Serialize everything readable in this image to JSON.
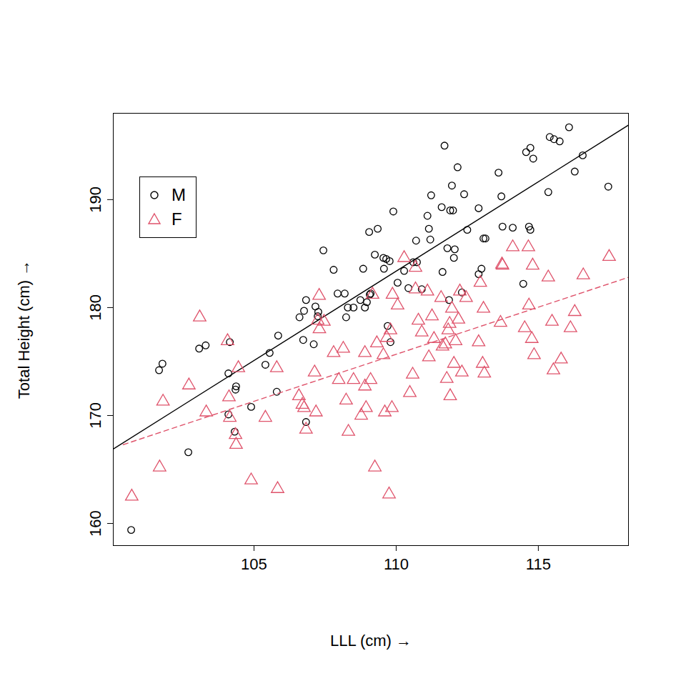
{
  "chart_data": {
    "type": "scatter",
    "x_label": "LLL (cm)",
    "y_label": "Total Height (cm)",
    "xlim": [
      100.05,
      118.17
    ],
    "ylim": [
      157.95,
      198.0
    ],
    "xticks": [
      105,
      110,
      115
    ],
    "yticks": [
      160,
      170,
      180,
      190
    ],
    "legend": "topleft",
    "grid": false,
    "series": [
      {
        "name": "M",
        "color": "#000000",
        "marker": "circle",
        "line_style": "solid",
        "x": [
          100.68,
          101.66,
          101.78,
          102.69,
          103.07,
          103.3,
          104.1,
          104.1,
          104.15,
          104.37,
          104.35,
          104.32,
          104.9,
          105.4,
          105.55,
          105.8,
          105.85,
          106.6,
          106.73,
          106.76,
          106.83,
          106.83,
          107.1,
          107.16,
          107.24,
          107.26,
          107.44,
          107.8,
          107.94,
          108.19,
          108.24,
          108.3,
          108.5,
          108.74,
          108.84,
          108.9,
          108.97,
          109.07,
          109.1,
          109.05,
          109.25,
          109.35,
          109.55,
          109.57,
          109.65,
          109.77,
          109.7,
          109.8,
          109.9,
          110.05,
          110.28,
          110.43,
          110.6,
          110.73,
          110.7,
          110.9,
          111.1,
          111.23,
          111.15,
          111.2,
          111.6,
          111.63,
          111.7,
          111.8,
          111.9,
          111.96,
          111.86,
          112.0,
          112.03,
          112.06,
          112.16,
          112.31,
          112.39,
          112.5,
          112.9,
          112.9,
          113.0,
          113.07,
          113.14,
          113.6,
          113.7,
          113.74,
          114.1,
          114.47,
          114.57,
          114.72,
          114.67,
          114.72,
          114.82,
          115.35,
          115.4,
          115.55,
          115.75,
          116.08,
          116.28,
          116.56,
          117.46
        ],
        "values": [
          159.4,
          174.2,
          174.8,
          166.6,
          176.2,
          176.5,
          170.1,
          173.9,
          176.8,
          172.7,
          172.4,
          168.5,
          170.8,
          174.7,
          175.8,
          172.2,
          177.4,
          179.1,
          177.0,
          179.7,
          169.4,
          180.7,
          176.6,
          180.1,
          179.2,
          179.6,
          185.3,
          183.5,
          181.3,
          181.3,
          179.1,
          180.0,
          180.0,
          180.7,
          183.6,
          180.0,
          180.5,
          181.2,
          181.3,
          187.0,
          184.9,
          187.3,
          184.6,
          183.6,
          184.5,
          184.3,
          178.3,
          176.8,
          188.9,
          182.3,
          183.4,
          181.8,
          184.2,
          184.2,
          186.2,
          181.7,
          188.5,
          190.4,
          187.3,
          186.3,
          189.3,
          183.3,
          195.0,
          185.5,
          189.0,
          191.3,
          180.7,
          189.0,
          184.6,
          185.4,
          193.0,
          181.4,
          190.5,
          187.2,
          189.2,
          183.1,
          183.6,
          186.4,
          186.4,
          192.5,
          190.3,
          187.5,
          187.4,
          182.2,
          194.4,
          194.8,
          187.5,
          187.2,
          193.8,
          190.7,
          195.8,
          195.6,
          195.4,
          196.7,
          192.6,
          194.1,
          191.2
        ],
        "fit": {
          "x": [
            100.05,
            118.17
          ],
          "values": [
            166.9,
            196.9
          ]
        }
      },
      {
        "name": "F",
        "color": "#DF536B",
        "marker": "triangle",
        "line_style": "dashed",
        "x": [
          100.7,
          101.68,
          101.8,
          102.71,
          103.09,
          103.32,
          104.07,
          104.12,
          104.15,
          104.35,
          104.37,
          104.45,
          104.9,
          105.4,
          105.8,
          105.83,
          106.58,
          106.7,
          106.76,
          106.83,
          107.13,
          107.18,
          107.24,
          107.29,
          107.3,
          107.46,
          107.8,
          107.98,
          108.14,
          108.24,
          108.32,
          108.5,
          108.77,
          108.9,
          108.9,
          108.94,
          109.1,
          109.17,
          109.25,
          109.32,
          109.55,
          109.6,
          109.67,
          109.75,
          109.8,
          109.85,
          109.87,
          110.05,
          110.28,
          110.48,
          110.58,
          110.68,
          110.68,
          110.78,
          110.9,
          111.1,
          111.15,
          111.26,
          111.33,
          111.58,
          111.63,
          111.73,
          111.78,
          111.83,
          111.88,
          111.9,
          111.96,
          112.03,
          112.09,
          112.19,
          112.24,
          112.31,
          112.46,
          112.9,
          112.96,
          113.04,
          113.07,
          113.1,
          113.67,
          113.72,
          113.74,
          114.1,
          114.52,
          114.65,
          114.67,
          114.77,
          114.8,
          114.85,
          115.35,
          115.48,
          115.53,
          115.8,
          116.13,
          116.28,
          116.58,
          117.49
        ],
        "values": [
          162.5,
          165.2,
          171.3,
          172.8,
          179.1,
          170.3,
          176.9,
          171.7,
          169.8,
          168.2,
          167.3,
          174.4,
          164.0,
          169.8,
          174.4,
          163.2,
          171.8,
          171.0,
          170.7,
          168.7,
          174.0,
          170.3,
          178.8,
          181.1,
          178.0,
          178.7,
          175.8,
          173.3,
          176.2,
          171.4,
          168.5,
          173.3,
          170.0,
          175.8,
          172.7,
          170.7,
          173.3,
          181.2,
          165.2,
          176.7,
          175.6,
          170.3,
          177.2,
          162.7,
          177.9,
          170.7,
          181.2,
          180.2,
          184.6,
          172.1,
          173.8,
          183.7,
          181.7,
          178.8,
          177.7,
          181.5,
          175.4,
          179.2,
          177.1,
          180.9,
          176.4,
          176.6,
          173.4,
          177.9,
          178.5,
          171.8,
          179.9,
          174.8,
          176.9,
          178.9,
          181.5,
          174.0,
          180.9,
          176.8,
          182.3,
          174.8,
          179.9,
          173.9,
          178.6,
          184.0,
          183.9,
          185.6,
          178.1,
          185.6,
          180.2,
          177.1,
          183.9,
          175.6,
          182.8,
          178.7,
          174.2,
          175.2,
          178.1,
          179.6,
          183.0,
          184.7
        ],
        "fit": {
          "x": [
            100.4,
            118.17
          ],
          "values": [
            167.3,
            182.8
          ]
        }
      }
    ]
  }
}
